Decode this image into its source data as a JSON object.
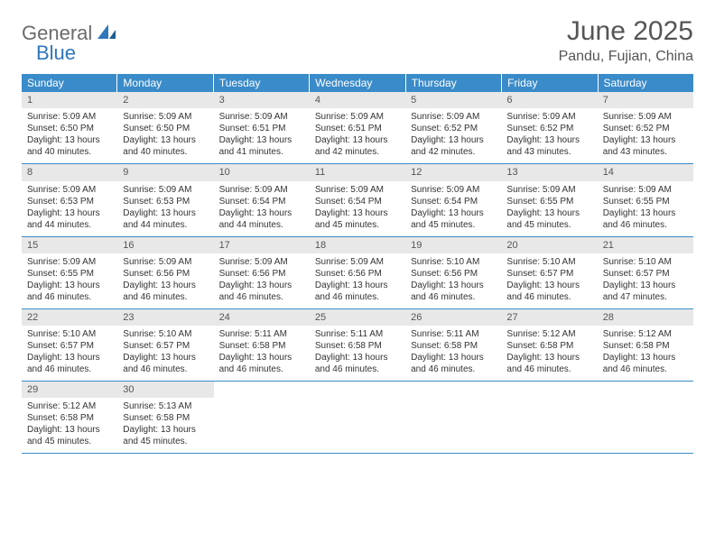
{
  "logo": {
    "general": "General",
    "blue": "Blue"
  },
  "title": "June 2025",
  "location": "Pandu, Fujian, China",
  "colors": {
    "header_bg": "#3a8bc9",
    "header_text": "#ffffff",
    "daynum_bg": "#e8e8e8",
    "row_border": "#3a8bc9",
    "logo_general": "#6b6b6b",
    "logo_blue": "#2f77bb",
    "title_color": "#555555"
  },
  "weekdays": [
    "Sunday",
    "Monday",
    "Tuesday",
    "Wednesday",
    "Thursday",
    "Friday",
    "Saturday"
  ],
  "weeks": [
    [
      {
        "n": "1",
        "sr": "Sunrise: 5:09 AM",
        "ss": "Sunset: 6:50 PM",
        "d1": "Daylight: 13 hours",
        "d2": "and 40 minutes."
      },
      {
        "n": "2",
        "sr": "Sunrise: 5:09 AM",
        "ss": "Sunset: 6:50 PM",
        "d1": "Daylight: 13 hours",
        "d2": "and 40 minutes."
      },
      {
        "n": "3",
        "sr": "Sunrise: 5:09 AM",
        "ss": "Sunset: 6:51 PM",
        "d1": "Daylight: 13 hours",
        "d2": "and 41 minutes."
      },
      {
        "n": "4",
        "sr": "Sunrise: 5:09 AM",
        "ss": "Sunset: 6:51 PM",
        "d1": "Daylight: 13 hours",
        "d2": "and 42 minutes."
      },
      {
        "n": "5",
        "sr": "Sunrise: 5:09 AM",
        "ss": "Sunset: 6:52 PM",
        "d1": "Daylight: 13 hours",
        "d2": "and 42 minutes."
      },
      {
        "n": "6",
        "sr": "Sunrise: 5:09 AM",
        "ss": "Sunset: 6:52 PM",
        "d1": "Daylight: 13 hours",
        "d2": "and 43 minutes."
      },
      {
        "n": "7",
        "sr": "Sunrise: 5:09 AM",
        "ss": "Sunset: 6:52 PM",
        "d1": "Daylight: 13 hours",
        "d2": "and 43 minutes."
      }
    ],
    [
      {
        "n": "8",
        "sr": "Sunrise: 5:09 AM",
        "ss": "Sunset: 6:53 PM",
        "d1": "Daylight: 13 hours",
        "d2": "and 44 minutes."
      },
      {
        "n": "9",
        "sr": "Sunrise: 5:09 AM",
        "ss": "Sunset: 6:53 PM",
        "d1": "Daylight: 13 hours",
        "d2": "and 44 minutes."
      },
      {
        "n": "10",
        "sr": "Sunrise: 5:09 AM",
        "ss": "Sunset: 6:54 PM",
        "d1": "Daylight: 13 hours",
        "d2": "and 44 minutes."
      },
      {
        "n": "11",
        "sr": "Sunrise: 5:09 AM",
        "ss": "Sunset: 6:54 PM",
        "d1": "Daylight: 13 hours",
        "d2": "and 45 minutes."
      },
      {
        "n": "12",
        "sr": "Sunrise: 5:09 AM",
        "ss": "Sunset: 6:54 PM",
        "d1": "Daylight: 13 hours",
        "d2": "and 45 minutes."
      },
      {
        "n": "13",
        "sr": "Sunrise: 5:09 AM",
        "ss": "Sunset: 6:55 PM",
        "d1": "Daylight: 13 hours",
        "d2": "and 45 minutes."
      },
      {
        "n": "14",
        "sr": "Sunrise: 5:09 AM",
        "ss": "Sunset: 6:55 PM",
        "d1": "Daylight: 13 hours",
        "d2": "and 46 minutes."
      }
    ],
    [
      {
        "n": "15",
        "sr": "Sunrise: 5:09 AM",
        "ss": "Sunset: 6:55 PM",
        "d1": "Daylight: 13 hours",
        "d2": "and 46 minutes."
      },
      {
        "n": "16",
        "sr": "Sunrise: 5:09 AM",
        "ss": "Sunset: 6:56 PM",
        "d1": "Daylight: 13 hours",
        "d2": "and 46 minutes."
      },
      {
        "n": "17",
        "sr": "Sunrise: 5:09 AM",
        "ss": "Sunset: 6:56 PM",
        "d1": "Daylight: 13 hours",
        "d2": "and 46 minutes."
      },
      {
        "n": "18",
        "sr": "Sunrise: 5:09 AM",
        "ss": "Sunset: 6:56 PM",
        "d1": "Daylight: 13 hours",
        "d2": "and 46 minutes."
      },
      {
        "n": "19",
        "sr": "Sunrise: 5:10 AM",
        "ss": "Sunset: 6:56 PM",
        "d1": "Daylight: 13 hours",
        "d2": "and 46 minutes."
      },
      {
        "n": "20",
        "sr": "Sunrise: 5:10 AM",
        "ss": "Sunset: 6:57 PM",
        "d1": "Daylight: 13 hours",
        "d2": "and 46 minutes."
      },
      {
        "n": "21",
        "sr": "Sunrise: 5:10 AM",
        "ss": "Sunset: 6:57 PM",
        "d1": "Daylight: 13 hours",
        "d2": "and 47 minutes."
      }
    ],
    [
      {
        "n": "22",
        "sr": "Sunrise: 5:10 AM",
        "ss": "Sunset: 6:57 PM",
        "d1": "Daylight: 13 hours",
        "d2": "and 46 minutes."
      },
      {
        "n": "23",
        "sr": "Sunrise: 5:10 AM",
        "ss": "Sunset: 6:57 PM",
        "d1": "Daylight: 13 hours",
        "d2": "and 46 minutes."
      },
      {
        "n": "24",
        "sr": "Sunrise: 5:11 AM",
        "ss": "Sunset: 6:58 PM",
        "d1": "Daylight: 13 hours",
        "d2": "and 46 minutes."
      },
      {
        "n": "25",
        "sr": "Sunrise: 5:11 AM",
        "ss": "Sunset: 6:58 PM",
        "d1": "Daylight: 13 hours",
        "d2": "and 46 minutes."
      },
      {
        "n": "26",
        "sr": "Sunrise: 5:11 AM",
        "ss": "Sunset: 6:58 PM",
        "d1": "Daylight: 13 hours",
        "d2": "and 46 minutes."
      },
      {
        "n": "27",
        "sr": "Sunrise: 5:12 AM",
        "ss": "Sunset: 6:58 PM",
        "d1": "Daylight: 13 hours",
        "d2": "and 46 minutes."
      },
      {
        "n": "28",
        "sr": "Sunrise: 5:12 AM",
        "ss": "Sunset: 6:58 PM",
        "d1": "Daylight: 13 hours",
        "d2": "and 46 minutes."
      }
    ],
    [
      {
        "n": "29",
        "sr": "Sunrise: 5:12 AM",
        "ss": "Sunset: 6:58 PM",
        "d1": "Daylight: 13 hours",
        "d2": "and 45 minutes."
      },
      {
        "n": "30",
        "sr": "Sunrise: 5:13 AM",
        "ss": "Sunset: 6:58 PM",
        "d1": "Daylight: 13 hours",
        "d2": "and 45 minutes."
      },
      null,
      null,
      null,
      null,
      null
    ]
  ]
}
